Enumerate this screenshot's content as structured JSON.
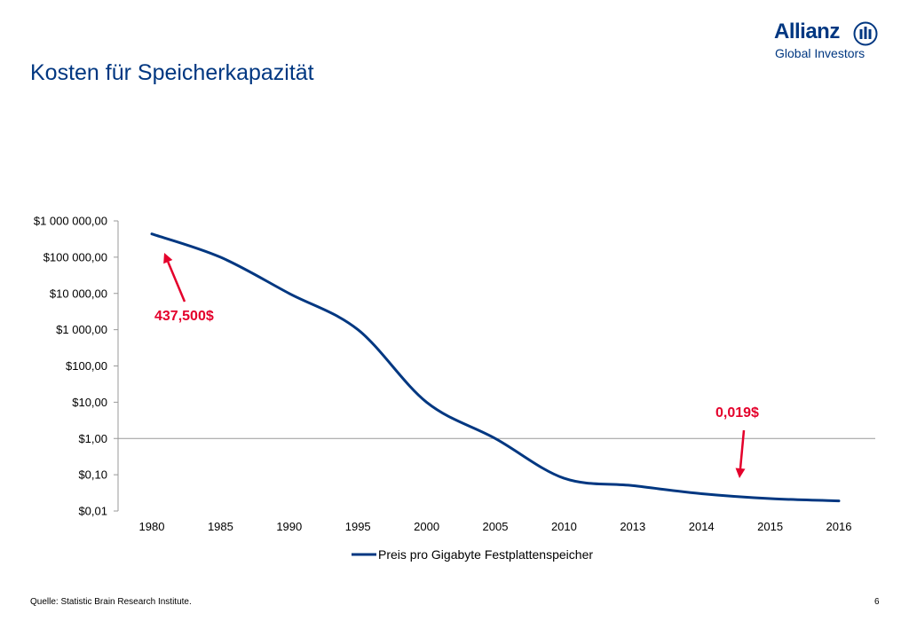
{
  "title": "Kosten für Speicherkapazität",
  "logo": {
    "brand": "Allianz",
    "subline": "Global Investors"
  },
  "footer": {
    "source": "Quelle: Statistic Brain Research Institute.",
    "page": "6"
  },
  "colors": {
    "title": "#003781",
    "series": "#003781",
    "annotation": "#e4002b"
  },
  "chart_data": {
    "type": "line",
    "scale": "log",
    "categories": [
      "1980",
      "1985",
      "1990",
      "1995",
      "2000",
      "2005",
      "2010",
      "2013",
      "2014",
      "2015",
      "2016"
    ],
    "y_ticks": [
      {
        "value": 1000000,
        "label": "$1 000 000,00"
      },
      {
        "value": 100000,
        "label": "$100 000,00"
      },
      {
        "value": 10000,
        "label": "$10 000,00"
      },
      {
        "value": 1000,
        "label": "$1 000,00"
      },
      {
        "value": 100,
        "label": "$100,00"
      },
      {
        "value": 10,
        "label": "$10,00"
      },
      {
        "value": 1,
        "label": "$1,00"
      },
      {
        "value": 0.1,
        "label": "$0,10"
      },
      {
        "value": 0.01,
        "label": "$0,01"
      }
    ],
    "ylim": [
      0.01,
      1000000
    ],
    "series": [
      {
        "name": "Preis pro Gigabyte Festplattenspeicher",
        "values": [
          437500,
          100000,
          10000,
          1000,
          10,
          1,
          0.08,
          0.05,
          0.03,
          0.022,
          0.019
        ]
      }
    ],
    "legend": "bottom",
    "annotations": [
      {
        "text": "437,500$",
        "category_index": 0
      },
      {
        "text": "0,019$",
        "category_index": 10
      }
    ]
  }
}
